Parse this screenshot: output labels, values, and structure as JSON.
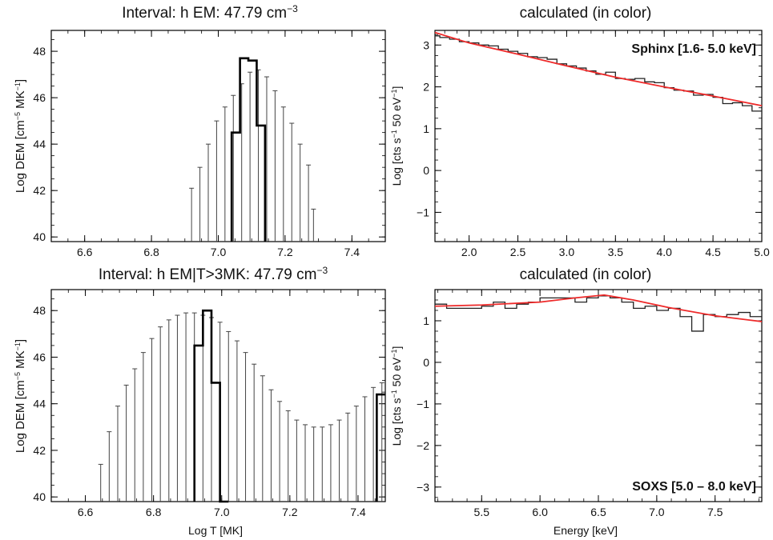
{
  "figure": {
    "panels": [
      {
        "title_main": "Interval: h  EM:  47.79 cm",
        "title_sup": "−3",
        "ylabel_main": "Log DEM [cm",
        "ylabel_sup1": "−5",
        "ylabel_mid": " MK",
        "ylabel_sup2": "−1",
        "ylabel_end": "]",
        "xlabel": ""
      },
      {
        "title_main": "calculated (in color)",
        "ylabel_main": "Log [cts s",
        "ylabel_sup1": "−1",
        "ylabel_mid": " 50 eV",
        "ylabel_sup2": "−1",
        "ylabel_end": "]",
        "xlabel": "",
        "annotation": "Sphinx [1.6- 5.0 keV]"
      },
      {
        "title_main": "Interval: h  EM|T>3MK:  47.79 cm",
        "title_sup": "−3",
        "ylabel_main": "Log DEM [cm",
        "ylabel_sup1": "−5",
        "ylabel_mid": " MK",
        "ylabel_sup2": "−1",
        "ylabel_end": "]",
        "xlabel": "Log T [MK]"
      },
      {
        "title_main": "calculated (in color)",
        "ylabel_main": "Log [cts s",
        "ylabel_sup1": "−1",
        "ylabel_mid": " 50 eV",
        "ylabel_sup2": "−1",
        "ylabel_end": "]",
        "xlabel": "Energy [keV]",
        "annotation": "SOXS [5.0 – 8.0 keV]"
      }
    ]
  },
  "chart_data": [
    {
      "type": "line",
      "subtype": "dem-histogram-with-error-bars",
      "title": "Interval: h  EM:  47.79 cm^-3",
      "xlabel": "",
      "ylabel": "Log DEM [cm^-5 MK^-1]",
      "xlim": [
        6.5,
        7.5
      ],
      "ylim": [
        39.8,
        48.9
      ],
      "xticks": [
        6.6,
        6.8,
        7.0,
        7.2,
        7.4
      ],
      "yticks": [
        40,
        42,
        44,
        46,
        48
      ],
      "grid": false,
      "histogram": {
        "bin_edges": [
          7.04,
          7.065,
          7.09,
          7.115,
          7.14
        ],
        "values": [
          44.5,
          47.7,
          47.6,
          44.8
        ]
      },
      "error_bars": {
        "x": [
          6.92,
          6.945,
          6.97,
          6.995,
          7.02,
          7.045,
          7.07,
          7.095,
          7.12,
          7.145,
          7.17,
          7.195,
          7.22,
          7.245,
          7.27,
          7.285
        ],
        "upper": [
          42.1,
          43.0,
          44.0,
          45.0,
          45.6,
          46.1,
          46.6,
          47.1,
          47.2,
          46.9,
          46.3,
          45.6,
          44.9,
          44.0,
          43.1,
          41.2
        ]
      },
      "series": [
        {
          "name": "",
          "color": "#000000",
          "role": "DEM histogram"
        }
      ]
    },
    {
      "type": "line",
      "title": "calculated (in color)",
      "xlabel": "",
      "ylabel": "Log [cts s^-1 50 eV^-1]",
      "xlim": [
        1.65,
        5.0
      ],
      "ylim": [
        -1.7,
        3.35
      ],
      "xticks": [
        2.0,
        2.5,
        3.0,
        3.5,
        4.0,
        4.5,
        5.0
      ],
      "yticks": [
        -1,
        0,
        1,
        2,
        3
      ],
      "annotation": "Sphinx [1.6- 5.0 keV]",
      "x": [
        1.65,
        1.75,
        1.85,
        1.95,
        2.05,
        2.15,
        2.25,
        2.35,
        2.45,
        2.55,
        2.65,
        2.75,
        2.85,
        2.95,
        3.05,
        3.15,
        3.25,
        3.35,
        3.45,
        3.55,
        3.65,
        3.75,
        3.85,
        3.95,
        4.05,
        4.15,
        4.25,
        4.35,
        4.45,
        4.55,
        4.65,
        4.75,
        4.85,
        4.95
      ],
      "series": [
        {
          "name": "",
          "color": "#222222",
          "role": "observed histogram",
          "values": [
            3.22,
            3.18,
            3.14,
            3.08,
            3.05,
            3.0,
            2.98,
            2.9,
            2.85,
            2.8,
            2.72,
            2.7,
            2.66,
            2.55,
            2.5,
            2.45,
            2.38,
            2.3,
            2.35,
            2.2,
            2.18,
            2.2,
            2.12,
            2.1,
            1.98,
            1.92,
            1.9,
            1.8,
            1.82,
            1.75,
            1.6,
            1.62,
            1.55,
            1.42
          ]
        },
        {
          "name": "",
          "color": "#ee2a2a",
          "role": "calculated model",
          "line": [
            [
              1.65,
              3.3
            ],
            [
              2.0,
              3.05
            ],
            [
              2.5,
              2.78
            ],
            [
              3.0,
              2.5
            ],
            [
              3.5,
              2.23
            ],
            [
              4.0,
              2.0
            ],
            [
              4.5,
              1.78
            ],
            [
              5.0,
              1.55
            ]
          ]
        }
      ]
    },
    {
      "type": "line",
      "subtype": "dem-histogram-with-error-bars",
      "title": "Interval: h  EM|T>3MK:  47.79 cm^-3",
      "xlabel": "Log T [MK]",
      "ylabel": "Log DEM [cm^-5 MK^-1]",
      "xlim": [
        6.5,
        7.48
      ],
      "ylim": [
        39.8,
        48.9
      ],
      "xticks": [
        6.6,
        6.8,
        7.0,
        7.2,
        7.4
      ],
      "yticks": [
        40,
        42,
        44,
        46,
        48
      ],
      "grid": false,
      "histogram": {
        "bin_edges": [
          6.92,
          6.945,
          6.97,
          6.995,
          7.02
        ],
        "values": [
          46.5,
          48.0,
          44.9,
          39.8
        ],
        "edge_bin": {
          "x0": 7.455,
          "x1": 7.48,
          "value": 44.4
        }
      },
      "error_bars": {
        "x": [
          6.645,
          6.67,
          6.695,
          6.72,
          6.745,
          6.77,
          6.795,
          6.82,
          6.845,
          6.87,
          6.895,
          6.92,
          6.945,
          6.97,
          6.995,
          7.02,
          7.045,
          7.07,
          7.095,
          7.12,
          7.145,
          7.17,
          7.195,
          7.22,
          7.245,
          7.27,
          7.295,
          7.32,
          7.345,
          7.37,
          7.395,
          7.42,
          7.445,
          7.47
        ],
        "upper": [
          41.4,
          42.8,
          43.9,
          44.8,
          45.5,
          46.2,
          46.8,
          47.3,
          47.6,
          47.8,
          47.9,
          47.9,
          47.8,
          47.7,
          47.5,
          47.1,
          46.7,
          46.2,
          45.7,
          45.2,
          44.6,
          44.1,
          43.7,
          43.3,
          43.1,
          43.0,
          43.0,
          43.1,
          43.3,
          43.6,
          43.9,
          44.3,
          44.7,
          44.9
        ]
      },
      "series": [
        {
          "name": "",
          "color": "#000000",
          "role": "DEM histogram"
        }
      ]
    },
    {
      "type": "line",
      "title": "calculated (in color)",
      "xlabel": "Energy [keV]",
      "ylabel": "Log [cts s^-1 50 eV^-1]",
      "xlim": [
        5.1,
        7.9
      ],
      "ylim": [
        -3.35,
        1.75
      ],
      "xticks": [
        5.5,
        6.0,
        6.5,
        7.0,
        7.5
      ],
      "yticks": [
        -3,
        -2,
        -1,
        0,
        1
      ],
      "annotation": "SOXS [5.0 – 8.0 keV]",
      "x": [
        5.15,
        5.25,
        5.35,
        5.45,
        5.55,
        5.65,
        5.75,
        5.85,
        5.95,
        6.05,
        6.15,
        6.25,
        6.35,
        6.45,
        6.55,
        6.65,
        6.75,
        6.85,
        6.95,
        7.05,
        7.15,
        7.25,
        7.35,
        7.45,
        7.55,
        7.65,
        7.75,
        7.85
      ],
      "series": [
        {
          "name": "",
          "color": "#222222",
          "role": "observed histogram",
          "values": [
            1.4,
            1.3,
            1.3,
            1.3,
            1.35,
            1.45,
            1.3,
            1.4,
            1.45,
            1.55,
            1.55,
            1.55,
            1.45,
            1.55,
            1.6,
            1.55,
            1.45,
            1.3,
            1.35,
            1.25,
            1.3,
            1.1,
            0.75,
            1.15,
            1.1,
            1.15,
            1.2,
            1.1
          ]
        },
        {
          "name": "",
          "color": "#ee2a2a",
          "role": "calculated model",
          "line": [
            [
              5.1,
              1.35
            ],
            [
              5.5,
              1.38
            ],
            [
              6.0,
              1.45
            ],
            [
              6.3,
              1.55
            ],
            [
              6.55,
              1.62
            ],
            [
              6.8,
              1.5
            ],
            [
              7.1,
              1.32
            ],
            [
              7.5,
              1.12
            ],
            [
              7.9,
              0.98
            ]
          ]
        }
      ]
    }
  ]
}
